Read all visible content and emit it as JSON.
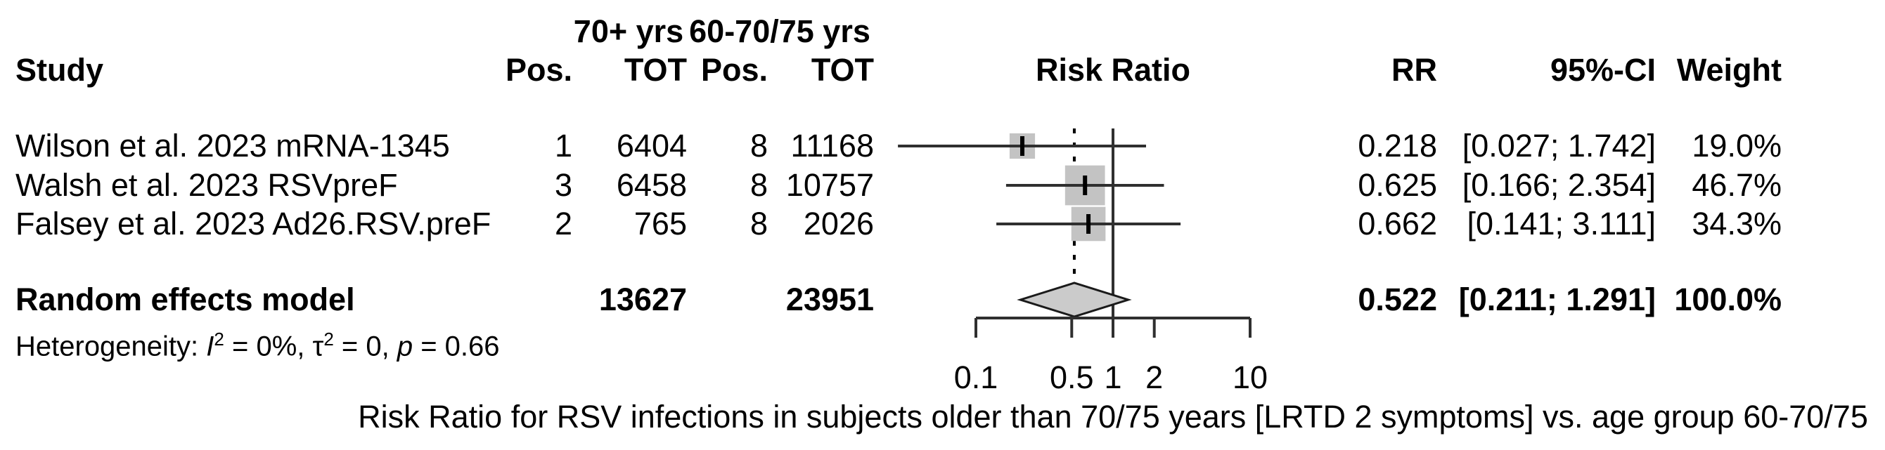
{
  "title_groups": {
    "group1": "70+ yrs",
    "group2": "60-70/75 yrs"
  },
  "headers": {
    "study": "Study",
    "pos1": "Pos.",
    "tot1": "TOT",
    "pos2": "Pos.",
    "tot2": "TOT",
    "risk_ratio": "Risk Ratio",
    "rr": "RR",
    "ci": "95%-CI",
    "weight": "Weight"
  },
  "studies": [
    {
      "name": "Wilson et al. 2023 mRNA-1345",
      "pos1": "1",
      "tot1": "6404",
      "pos2": "8",
      "tot2": "11168",
      "rr": "0.218",
      "ci": "[0.027; 1.742]",
      "weight": "19.0%"
    },
    {
      "name": "Walsh et al. 2023 RSVpreF",
      "pos1": "3",
      "tot1": "6458",
      "pos2": "8",
      "tot2": "10757",
      "rr": "0.625",
      "ci": "[0.166; 2.354]",
      "weight": "46.7%"
    },
    {
      "name": "Falsey et al. 2023 Ad26.RSV.preF",
      "pos1": "2",
      "tot1": "765",
      "pos2": "8",
      "tot2": "2026",
      "rr": "0.662",
      "ci": "[0.141; 3.111]",
      "weight": "34.3%"
    }
  ],
  "pooled": {
    "name": "Random effects model",
    "tot1": "13627",
    "tot2": "23951",
    "rr": "0.522",
    "ci": "[0.211; 1.291]",
    "weight": "100.0%"
  },
  "heterogeneity": {
    "prefix": "Heterogeneity: ",
    "i_symbol": "I",
    "i_sup": "2",
    "mid1": " = 0%, τ",
    "tau_sup": "2",
    "mid2": " = 0, ",
    "p_symbol": "p",
    "suffix": " = 0.66"
  },
  "axis_tick_labels": [
    "0.1",
    "0.5",
    "1",
    "2",
    "10"
  ],
  "caption": "Risk Ratio for RSV infections in subjects older than 70/75 years [LRTD 2 symptoms] vs. age group 60-70/75",
  "chart_data": {
    "type": "forest",
    "x_scale": "log10",
    "xlim": [
      0.1,
      10
    ],
    "axis_ticks": [
      0.1,
      0.5,
      1,
      2,
      10
    ],
    "null_line": 1,
    "title": "Risk Ratio",
    "xlabel": "Risk Ratio for RSV infections in subjects older than 70/75 years [LRTD 2 symptoms] vs. age group 60-70/75",
    "studies": [
      {
        "label": "Wilson et al. 2023 mRNA-1345",
        "events_70plus": 1,
        "total_70plus": 6404,
        "events_60_70": 8,
        "total_60_70": 11168,
        "rr": 0.218,
        "ci_low": 0.027,
        "ci_high": 1.742,
        "weight_pct": 19.0
      },
      {
        "label": "Walsh et al. 2023 RSVpreF",
        "events_70plus": 3,
        "total_70plus": 6458,
        "events_60_70": 8,
        "total_60_70": 10757,
        "rr": 0.625,
        "ci_low": 0.166,
        "ci_high": 2.354,
        "weight_pct": 46.7
      },
      {
        "label": "Falsey et al. 2023 Ad26.RSV.preF",
        "events_70plus": 2,
        "total_70plus": 765,
        "events_60_70": 8,
        "total_60_70": 2026,
        "rr": 0.662,
        "ci_low": 0.141,
        "ci_high": 3.111,
        "weight_pct": 34.3
      }
    ],
    "pooled": {
      "label": "Random effects model",
      "model": "random effects",
      "total_70plus": 13627,
      "total_60_70": 23951,
      "rr": 0.522,
      "ci_low": 0.211,
      "ci_high": 1.291,
      "weight_pct": 100.0
    },
    "heterogeneity": {
      "I2": "0%",
      "tau2": 0,
      "p": 0.66
    },
    "colors": {
      "square": "#c3c3c3",
      "diamond_fill": "#cbcbcb",
      "diamond_stroke": "#1a1a1a",
      "line": "#2f2f2f",
      "text": "#000000"
    }
  }
}
